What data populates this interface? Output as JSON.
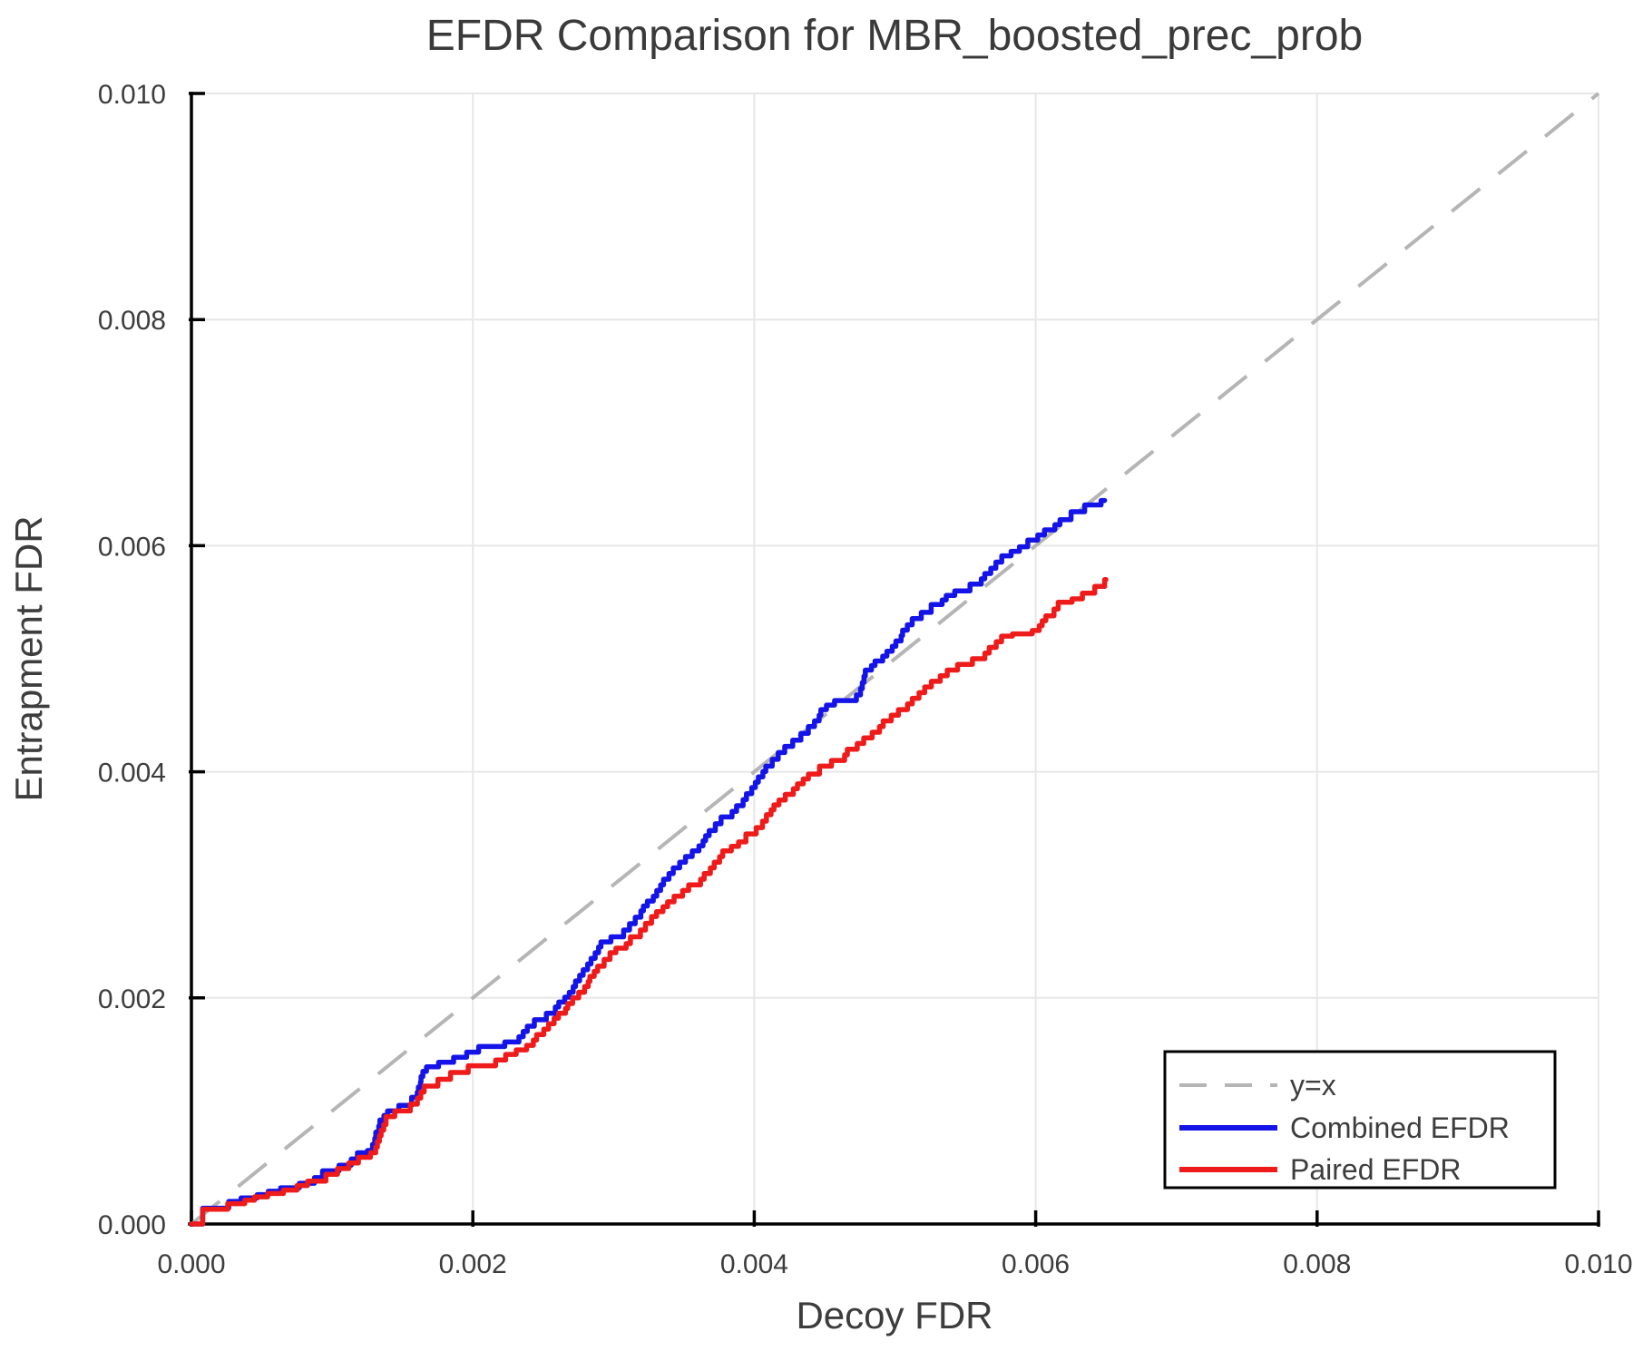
{
  "chart_data": {
    "type": "line",
    "title": "EFDR Comparison for MBR_boosted_prec_prob",
    "xlabel": "Decoy FDR",
    "ylabel": "Entrapment FDR",
    "xlim": [
      0.0,
      0.01
    ],
    "ylim": [
      0.0,
      0.01
    ],
    "grid": true,
    "legend_position": "bottom-right",
    "xticks": [
      {
        "value": 0.0,
        "label": "0.000"
      },
      {
        "value": 0.002,
        "label": "0.002"
      },
      {
        "value": 0.004,
        "label": "0.004"
      },
      {
        "value": 0.006,
        "label": "0.006"
      },
      {
        "value": 0.008,
        "label": "0.008"
      },
      {
        "value": 0.01,
        "label": "0.010"
      }
    ],
    "yticks": [
      {
        "value": 0.0,
        "label": "0.000"
      },
      {
        "value": 0.002,
        "label": "0.002"
      },
      {
        "value": 0.004,
        "label": "0.004"
      },
      {
        "value": 0.006,
        "label": "0.006"
      },
      {
        "value": 0.008,
        "label": "0.008"
      },
      {
        "value": 0.01,
        "label": "0.010"
      }
    ],
    "reference_line": {
      "label": "y=x",
      "from": [
        0.0,
        0.0
      ],
      "to": [
        0.01,
        0.01
      ],
      "style": "dashed",
      "color": "#b5b5b5"
    },
    "series": [
      {
        "name": "Combined EFDR",
        "color": "#1414e8",
        "style": "step",
        "points": [
          [
            0.0,
            0.0
          ],
          [
            8e-05,
            0.0
          ],
          [
            8e-05,
            0.00014
          ],
          [
            0.00022,
            0.00014
          ],
          [
            0.0003,
            0.0002
          ],
          [
            0.0004,
            0.00023
          ],
          [
            0.0005,
            0.00026
          ],
          [
            0.0006,
            0.00029
          ],
          [
            0.0007,
            0.00032
          ],
          [
            0.0008,
            0.00036
          ],
          [
            0.0009,
            0.00041
          ],
          [
            0.001,
            0.00047
          ],
          [
            0.0011,
            0.00052
          ],
          [
            0.0012,
            0.00063
          ],
          [
            0.00128,
            0.00065
          ],
          [
            0.00135,
            0.00092
          ],
          [
            0.0014,
            0.001
          ],
          [
            0.0015,
            0.00105
          ],
          [
            0.0016,
            0.00112
          ],
          [
            0.00165,
            0.00135
          ],
          [
            0.0017,
            0.00139
          ],
          [
            0.00185,
            0.00143
          ],
          [
            0.002,
            0.00152
          ],
          [
            0.0022,
            0.00157
          ],
          [
            0.0023,
            0.00161
          ],
          [
            0.0024,
            0.00175
          ],
          [
            0.0026,
            0.00192
          ],
          [
            0.0027,
            0.00205
          ],
          [
            0.0028,
            0.00225
          ],
          [
            0.0029,
            0.00245
          ],
          [
            0.003,
            0.00254
          ],
          [
            0.0031,
            0.0026
          ],
          [
            0.0032,
            0.00277
          ],
          [
            0.0033,
            0.0029
          ],
          [
            0.0034,
            0.0031
          ],
          [
            0.0035,
            0.0032
          ],
          [
            0.0036,
            0.0033
          ],
          [
            0.0037,
            0.00348
          ],
          [
            0.0038,
            0.0036
          ],
          [
            0.0039,
            0.0037
          ],
          [
            0.004,
            0.00386
          ],
          [
            0.0041,
            0.00405
          ],
          [
            0.0042,
            0.00417
          ],
          [
            0.0043,
            0.00428
          ],
          [
            0.0044,
            0.0044
          ],
          [
            0.0045,
            0.00455
          ],
          [
            0.0046,
            0.00463
          ],
          [
            0.00475,
            0.00468
          ],
          [
            0.0048,
            0.0049
          ],
          [
            0.0049,
            0.00498
          ],
          [
            0.005,
            0.00511
          ],
          [
            0.0051,
            0.0053
          ],
          [
            0.0052,
            0.00541
          ],
          [
            0.0053,
            0.00548
          ],
          [
            0.0054,
            0.00556
          ],
          [
            0.0055,
            0.0056
          ],
          [
            0.0056,
            0.00566
          ],
          [
            0.0057,
            0.0058
          ],
          [
            0.0058,
            0.00591
          ],
          [
            0.0059,
            0.00599
          ],
          [
            0.006,
            0.00605
          ],
          [
            0.0061,
            0.00614
          ],
          [
            0.0062,
            0.00623
          ],
          [
            0.0063,
            0.0063
          ],
          [
            0.0064,
            0.00636
          ],
          [
            0.00649,
            0.0064
          ]
        ]
      },
      {
        "name": "Paired EFDR",
        "color": "#ef1a1a",
        "style": "step",
        "points": [
          [
            0.0,
            0.0
          ],
          [
            8e-05,
            0.0
          ],
          [
            8e-05,
            0.00013
          ],
          [
            0.00022,
            0.00013
          ],
          [
            0.0003,
            0.00018
          ],
          [
            0.0004,
            0.00021
          ],
          [
            0.0005,
            0.00024
          ],
          [
            0.0006,
            0.00027
          ],
          [
            0.0007,
            0.0003
          ],
          [
            0.0008,
            0.00034
          ],
          [
            0.0009,
            0.00038
          ],
          [
            0.001,
            0.00044
          ],
          [
            0.0011,
            0.00049
          ],
          [
            0.0012,
            0.00059
          ],
          [
            0.0013,
            0.00063
          ],
          [
            0.00137,
            0.00088
          ],
          [
            0.0014,
            0.00095
          ],
          [
            0.0015,
            0.001
          ],
          [
            0.0016,
            0.00106
          ],
          [
            0.00167,
            0.00122
          ],
          [
            0.0018,
            0.00128
          ],
          [
            0.0019,
            0.00134
          ],
          [
            0.002,
            0.0014
          ],
          [
            0.0022,
            0.00145
          ],
          [
            0.0023,
            0.0015
          ],
          [
            0.0024,
            0.00158
          ],
          [
            0.0026,
            0.00182
          ],
          [
            0.0027,
            0.00195
          ],
          [
            0.0028,
            0.0021
          ],
          [
            0.0029,
            0.00228
          ],
          [
            0.003,
            0.0024
          ],
          [
            0.0031,
            0.00248
          ],
          [
            0.0032,
            0.0026
          ],
          [
            0.0033,
            0.00272
          ],
          [
            0.0034,
            0.00285
          ],
          [
            0.0035,
            0.00295
          ],
          [
            0.0036,
            0.003
          ],
          [
            0.0037,
            0.00315
          ],
          [
            0.0038,
            0.0033
          ],
          [
            0.0039,
            0.00338
          ],
          [
            0.004,
            0.00345
          ],
          [
            0.0041,
            0.00362
          ],
          [
            0.0042,
            0.00375
          ],
          [
            0.0043,
            0.00385
          ],
          [
            0.0044,
            0.00398
          ],
          [
            0.0045,
            0.00405
          ],
          [
            0.0046,
            0.0041
          ],
          [
            0.0047,
            0.0042
          ],
          [
            0.0048,
            0.0043
          ],
          [
            0.0049,
            0.0044
          ],
          [
            0.005,
            0.0045
          ],
          [
            0.0051,
            0.0046
          ],
          [
            0.0052,
            0.0047
          ],
          [
            0.0053,
            0.0048
          ],
          [
            0.0054,
            0.0049
          ],
          [
            0.0055,
            0.00495
          ],
          [
            0.0056,
            0.005
          ],
          [
            0.0057,
            0.0051
          ],
          [
            0.0058,
            0.0052
          ],
          [
            0.0059,
            0.00522
          ],
          [
            0.006,
            0.00525
          ],
          [
            0.0061,
            0.00538
          ],
          [
            0.0062,
            0.0055
          ],
          [
            0.0063,
            0.00553
          ],
          [
            0.0064,
            0.00558
          ],
          [
            0.0065,
            0.0057
          ]
        ]
      }
    ],
    "colors": {
      "background": "#ffffff",
      "gridline": "#e7e7e7",
      "axis": "#000000",
      "text": "#3d3d3d"
    }
  }
}
